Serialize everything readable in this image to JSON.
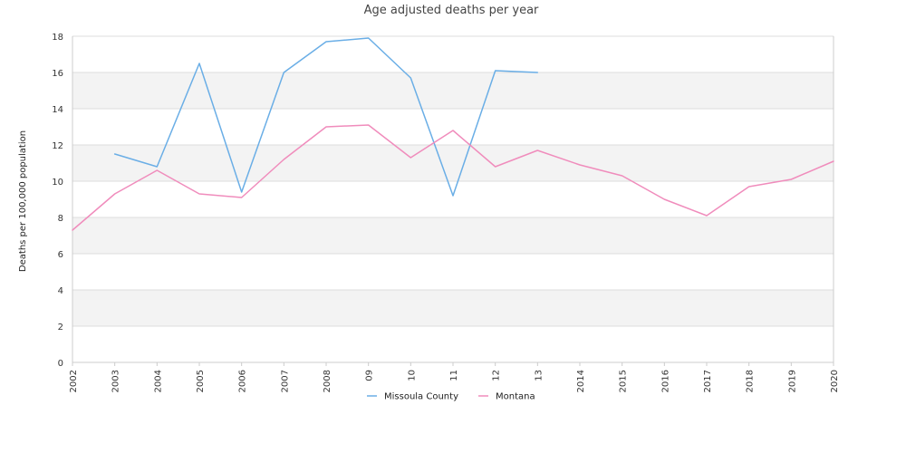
{
  "colors": {
    "missoula": "#6aaee6",
    "montana": "#f08cbc",
    "band": "#f3f3f3",
    "grid": "#dddddd",
    "axis": "#cccccc"
  },
  "chart_data": {
    "type": "line",
    "title": "Age adjusted deaths per year",
    "xlabel": "",
    "ylabel": "Deaths per 100,000 population",
    "ylim": [
      0,
      18
    ],
    "yticks": [
      "0",
      "2",
      "4",
      "6",
      "8",
      "10",
      "12",
      "14",
      "16",
      "18"
    ],
    "grid": "alternating horizontal bands",
    "legend_position": "bottom",
    "categories": [
      "2002",
      "2003",
      "2004",
      "2005",
      "2006",
      "2007",
      "2008",
      "09",
      "10",
      "11",
      "12",
      "13",
      "2014",
      "2015",
      "2016",
      "2017",
      "2018",
      "2019",
      "2020"
    ],
    "series": [
      {
        "name": "Missoula County",
        "color_key": "missoula",
        "values": [
          null,
          11.5,
          10.8,
          16.5,
          9.4,
          16.0,
          17.7,
          17.9,
          15.7,
          9.2,
          16.1,
          16.0,
          null,
          null,
          null,
          null,
          null,
          null,
          null
        ]
      },
      {
        "name": "Montana",
        "color_key": "montana",
        "values": [
          7.3,
          9.3,
          10.6,
          9.3,
          9.1,
          11.2,
          13.0,
          13.1,
          11.3,
          12.8,
          10.8,
          11.7,
          10.9,
          10.3,
          9.0,
          8.1,
          9.7,
          10.1,
          11.1
        ]
      }
    ]
  }
}
